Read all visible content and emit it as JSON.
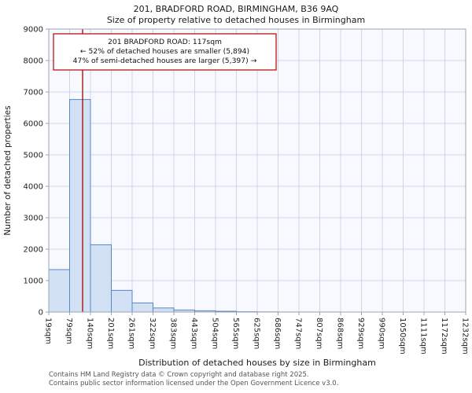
{
  "chart_data": {
    "type": "bar",
    "title": "201, BRADFORD ROAD, BIRMINGHAM, B36 9AQ",
    "subtitle": "Size of property relative to detached houses in Birmingham",
    "categories": [
      "19sqm",
      "79sqm",
      "140sqm",
      "201sqm",
      "261sqm",
      "322sqm",
      "383sqm",
      "443sqm",
      "504sqm",
      "565sqm",
      "625sqm",
      "686sqm",
      "747sqm",
      "807sqm",
      "868sqm",
      "929sqm",
      "990sqm",
      "1050sqm",
      "1111sqm",
      "1172sqm",
      "1232sqm"
    ],
    "values": [
      1350,
      6760,
      2140,
      690,
      290,
      130,
      65,
      40,
      25,
      10,
      4,
      2,
      1,
      1,
      0,
      0,
      0,
      0,
      0,
      0
    ],
    "xlabel": "Distribution of detached houses by size in Birmingham",
    "ylabel": "Number of detached properties",
    "ylim": [
      0,
      9000
    ],
    "ytick_step": 1000,
    "grid": true,
    "marker_value": 117,
    "annotation": {
      "lines": [
        "201 BRADFORD ROAD: 117sqm",
        "← 52% of detached houses are smaller (5,894)",
        "47% of semi-detached houses are larger (5,397) →"
      ]
    }
  },
  "footer": {
    "line1": "Contains HM Land Registry data © Crown copyright and database right 2025.",
    "line2": "Contains public sector information licensed under the Open Government Licence v3.0."
  },
  "colors": {
    "plot_bg": "#f7f9fe",
    "grid": "#ccd6ea",
    "axis": "#9aa3b5",
    "bar_fill": "#d2e0f3",
    "bar_border": "#5a86c5",
    "marker": "#aa0000",
    "annotation_border": "#bb0000",
    "text": "#1a1a1a",
    "tick_text": "#222222",
    "footer_text": "#555555"
  }
}
